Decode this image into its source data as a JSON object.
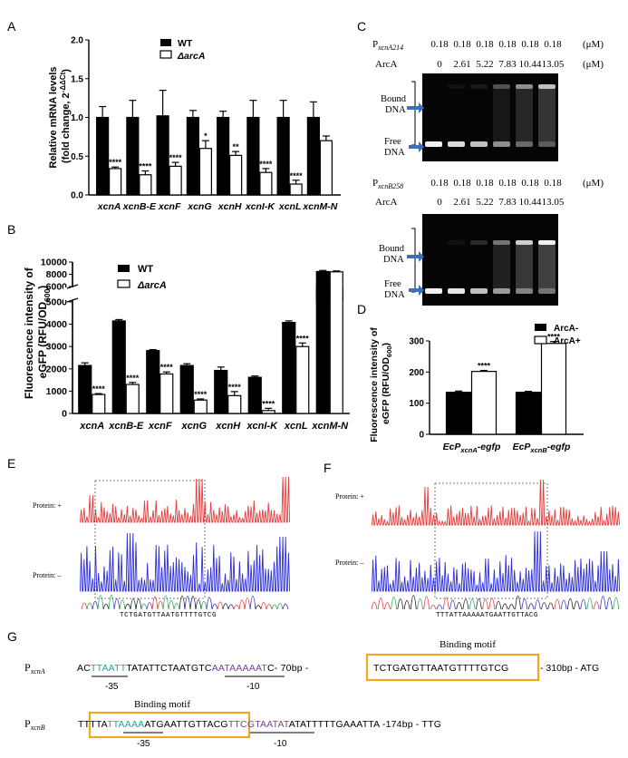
{
  "chart_data": [
    {
      "panel": "A",
      "type": "bar",
      "ylabel_line1": "Relative mRNA levels",
      "ylabel_line2": "(fold change, 2",
      "ylabel_sup": "-ΔΔCt",
      "ylabel_end": ")",
      "ylim": [
        0,
        2.0
      ],
      "yticks": [
        "0.0",
        "0.5",
        "1.0",
        "1.5",
        "2.0"
      ],
      "ytick_values": [
        0,
        0.5,
        1.0,
        1.5,
        2.0
      ],
      "categories": [
        "xcnA",
        "xcnB-E",
        "xcnF",
        "xcnG",
        "xcnH",
        "xcnI-K",
        "xcnL",
        "xcnM-N"
      ],
      "series": [
        {
          "name": "WT",
          "values": [
            1.0,
            1.0,
            1.02,
            1.0,
            1.0,
            1.0,
            1.0,
            1.0
          ],
          "err": [
            0.14,
            0.22,
            0.33,
            0.09,
            0.08,
            0.22,
            0.22,
            0.2
          ]
        },
        {
          "name": "ΔarcA",
          "values": [
            0.34,
            0.26,
            0.37,
            0.6,
            0.51,
            0.29,
            0.14,
            0.7
          ],
          "err": [
            0.02,
            0.05,
            0.05,
            0.1,
            0.05,
            0.05,
            0.05,
            0.06
          ]
        }
      ],
      "significance": [
        "****",
        "****",
        "****",
        "*",
        "**",
        "****",
        "****",
        ""
      ]
    },
    {
      "panel": "B",
      "type": "bar",
      "ylabel_line1": "Fluorescence intensity of",
      "ylabel_line2": "eGFP (RFU/OD",
      "ylabel_sub": "600",
      "ylabel_end": ")",
      "ylim": [
        0,
        10000
      ],
      "axis_break": [
        5000,
        6000
      ],
      "yticks": [
        "0",
        "1000",
        "2000",
        "3000",
        "4000",
        "5000",
        "6000",
        "8000",
        "10000"
      ],
      "ytick_values": [
        0,
        1000,
        2000,
        3000,
        4000,
        5000,
        6000,
        8000,
        10000
      ],
      "categories": [
        "xcnA",
        "xcnB-E",
        "xcnF",
        "xcnG",
        "xcnH",
        "xcnI-K",
        "xcnL",
        "xcnM-N"
      ],
      "series": [
        {
          "name": "WT",
          "values": [
            2150,
            4150,
            2820,
            2150,
            1930,
            1620,
            4080,
            8450
          ],
          "err": [
            120,
            60,
            40,
            80,
            150,
            60,
            70,
            180
          ]
        },
        {
          "name": "ΔarcA",
          "values": [
            850,
            1300,
            1770,
            600,
            800,
            130,
            3000,
            8400
          ],
          "err": [
            40,
            90,
            90,
            50,
            180,
            100,
            160,
            150
          ]
        }
      ],
      "significance": [
        "****",
        "****",
        "****",
        "****",
        "****",
        "****",
        "****",
        ""
      ]
    },
    {
      "panel": "D",
      "type": "bar",
      "ylabel_line1": "Fluorescence intensity of",
      "ylabel_line2": "eGFP (RFU/OD",
      "ylabel_sub": "600",
      "ylabel_end": ")",
      "ylim": [
        0,
        300
      ],
      "yticks": [
        "0",
        "100",
        "200",
        "300"
      ],
      "ytick_values": [
        0,
        100,
        200,
        300
      ],
      "categories": [
        "xcnA",
        "xcnB"
      ],
      "series": [
        {
          "name": "ArcA-",
          "values": [
            135,
            135
          ],
          "err": [
            4,
            3
          ]
        },
        {
          "name": "ArcA+",
          "values": [
            202,
            292
          ],
          "err": [
            3,
            6
          ]
        }
      ],
      "significance": [
        "****",
        "****"
      ]
    }
  ],
  "panel_labels": {
    "A": "A",
    "B": "B",
    "C": "C",
    "D": "D",
    "E": "E",
    "F": "F",
    "G": "G"
  },
  "panel_d_xlabel": {
    "prefix": "EcP",
    "suffix": "-egfp"
  },
  "gel": {
    "top": {
      "promoter_main": "P",
      "promoter_sub": "xcnA214",
      "concs": [
        "0.18",
        "0.18",
        "0.18",
        "0.18",
        "0.18",
        "0.18"
      ],
      "unit": "(μM)",
      "arca_label": "ArcA",
      "arca_values": [
        "0",
        "2.61",
        "5.22",
        "7.83",
        "10.44",
        "13.05"
      ]
    },
    "bottom": {
      "promoter_main": "P",
      "promoter_sub": "xcnB258",
      "concs": [
        "0.18",
        "0.18",
        "0.18",
        "0.18",
        "0.18",
        "0.18"
      ],
      "unit": "(μM)",
      "arca_label": "ArcA",
      "arca_values": [
        "0",
        "2.61",
        "5.22",
        "7.83",
        "10.44",
        "13.05"
      ]
    },
    "bound_label": [
      "Bound",
      "DNA"
    ],
    "free_label": [
      "Free",
      "DNA"
    ],
    "bound_intensity_top": [
      0.0,
      0.05,
      0.08,
      0.3,
      0.55,
      0.75
    ],
    "free_intensity_top": [
      0.95,
      0.85,
      0.75,
      0.55,
      0.4,
      0.35
    ],
    "bound_intensity_bottom": [
      0.0,
      0.05,
      0.15,
      0.45,
      0.8,
      0.95
    ],
    "free_intensity_bottom": [
      0.95,
      0.9,
      0.75,
      0.6,
      0.5,
      0.45
    ]
  },
  "footprint": {
    "protein_plus": "Protein: +",
    "protein_minus": "Protein: –",
    "E_seq": "TCTGATGTTAATGTTTTGTCG",
    "F_seq": "TTTATTAAAAATGAATTGTTACG"
  },
  "sequences": {
    "binding_motif": "Binding motif",
    "xcnA": {
      "p_main": "P",
      "p_sub": "xcnA",
      "s1": "AC",
      "s2": "TTAATT",
      "s3": "TATATTCTAATGTC",
      "s4": "AATAAAAAT",
      "s5": "C- 70bp -",
      "motif": "TCTGATGTTAATGTTTTGTCG",
      "s6": "- 310bp - ATG",
      "m35": "-35",
      "m10": "-10"
    },
    "xcnB": {
      "p_main": "P",
      "p_sub": "xcnB",
      "s1": "TTTTA",
      "s2": "TTAAAA",
      "s3": "ATGAATTGTTACG",
      "s4": "TTCGTAATAT",
      "s5": "ATATTTTTGAAATTA -174bp - TTG",
      "m35": "-35",
      "m10": "-10"
    }
  },
  "colors": {
    "promoter": "#1aa89a",
    "minus10": "#7a3fa0",
    "motif_box": "#f5a623",
    "trace_plus": "#e83b3b",
    "trace_minus": "#2e2edb",
    "arrow": "#3b6fb6"
  }
}
